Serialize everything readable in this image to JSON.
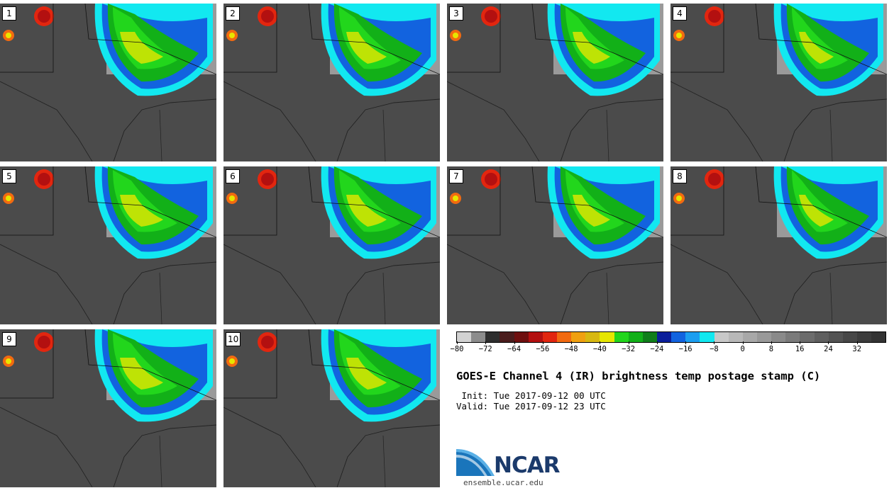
{
  "panels": [
    {
      "label": "1"
    },
    {
      "label": "2"
    },
    {
      "label": "3"
    },
    {
      "label": "4"
    },
    {
      "label": "5"
    },
    {
      "label": "6"
    },
    {
      "label": "7"
    },
    {
      "label": "8"
    },
    {
      "label": "9"
    },
    {
      "label": "10"
    }
  ],
  "colorbar": {
    "colors": [
      "#d2d2d2",
      "#8c8c8c",
      "#2e2e2e",
      "#4a1c1c",
      "#6e0f0f",
      "#b31010",
      "#e2260f",
      "#f26a10",
      "#f0a010",
      "#d8b811",
      "#e6e600",
      "#22d61c",
      "#12b018",
      "#107e1a",
      "#0b1e9a",
      "#1263df",
      "#1c9ef0",
      "#12e8f0",
      "#c8c8c8",
      "#b8b8b8",
      "#a8a8a8",
      "#999999",
      "#8a8a8a",
      "#7b7b7b",
      "#6c6c6c",
      "#5f5f5f",
      "#535353",
      "#474747",
      "#3c3c3c",
      "#333333"
    ],
    "ticks": [
      "−80",
      "−72",
      "−64",
      "−56",
      "−48",
      "−40",
      "−32",
      "−24",
      "−16",
      "−8",
      "0",
      "8",
      "16",
      "24",
      "32"
    ]
  },
  "title": "GOES-E Channel 4 (IR) brightness temp postage stamp (C)",
  "init": " Init: Tue 2017-09-12 00 UTC",
  "valid": "Valid: Tue 2017-09-12 23 UTC",
  "logo": {
    "text": "NCAR",
    "site": "ensemble.ucar.edu",
    "color": "#1b3a6b"
  }
}
